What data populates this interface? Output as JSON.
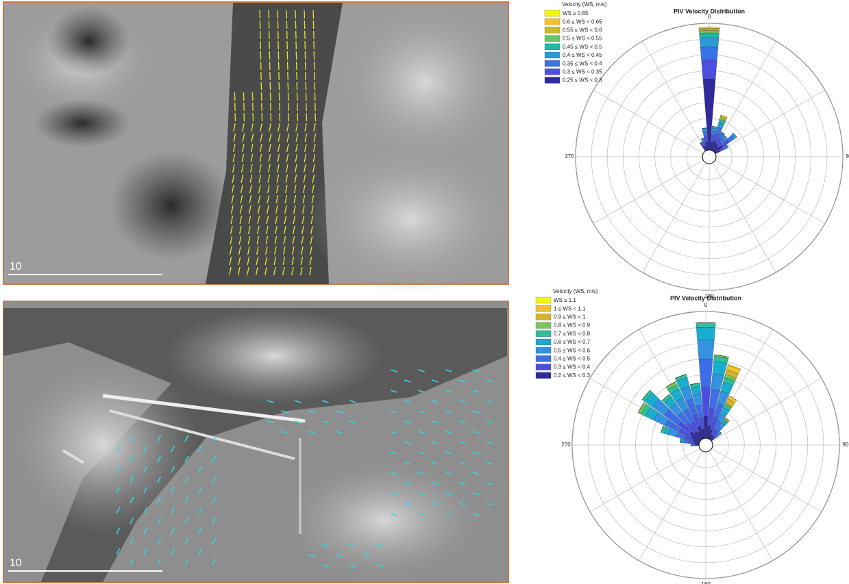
{
  "photos": [
    {
      "scale_label": "10"
    },
    {
      "scale_label": "10"
    }
  ],
  "chart_data": [
    {
      "type": "rose",
      "title": "PIV Velocity Distribution",
      "legend_title": "Velocity (WS, m/s)",
      "x": [
        330,
        340,
        350,
        0,
        10,
        20,
        30,
        40,
        50,
        60
      ],
      "rlim": [
        0,
        8
      ],
      "rticks": [
        1,
        2,
        3,
        4,
        5,
        6,
        7,
        8
      ],
      "thetaticks": [
        0,
        90,
        180,
        270
      ],
      "series": [
        {
          "name": "WS ≥ 0.65",
          "color": "#f5f50a",
          "values": [
            0,
            0,
            0,
            0.08,
            0,
            0,
            0,
            0,
            0,
            0
          ]
        },
        {
          "name": "0.6 ≤ WS < 0.65",
          "color": "#f2c12e",
          "values": [
            0,
            0,
            0,
            0.05,
            0,
            0.1,
            0,
            0,
            0,
            0
          ]
        },
        {
          "name": "0.55 ≤ WS < 0.6",
          "color": "#c9b92c",
          "values": [
            0,
            0,
            0,
            0.1,
            0,
            0.1,
            0,
            0,
            0,
            0
          ]
        },
        {
          "name": "0.5 ≤ WS < 0.55",
          "color": "#6cc46a",
          "values": [
            0,
            0,
            0,
            0.15,
            0,
            0.1,
            0,
            0,
            0,
            0
          ]
        },
        {
          "name": "0.45 ≤ WS < 0.5",
          "color": "#1fb7a6",
          "values": [
            0,
            0,
            0,
            0.3,
            0.1,
            0.2,
            0,
            0,
            0,
            0
          ]
        },
        {
          "name": "0.4 ≤ WS < 0.45",
          "color": "#2a9ad6",
          "values": [
            0,
            0.1,
            0.2,
            0.6,
            0.2,
            0.3,
            0.1,
            0.2,
            0.2,
            0.1
          ]
        },
        {
          "name": "0.35 ≤ WS < 0.4",
          "color": "#3a73e8",
          "values": [
            0.1,
            0.2,
            0.3,
            0.8,
            0.3,
            0.4,
            0.3,
            0.3,
            0.4,
            0.2
          ]
        },
        {
          "name": "0.3 ≤ WS < 0.35",
          "color": "#4c50e0",
          "values": [
            0.2,
            0.2,
            0.4,
            1.2,
            0.4,
            0.5,
            0.4,
            0.3,
            0.5,
            0.3
          ]
        },
        {
          "name": "0.25 ≤ WS < 0.3",
          "color": "#2e2a9c",
          "values": [
            0.3,
            0.3,
            0.5,
            4.5,
            0.5,
            0.6,
            0.5,
            0.4,
            0.6,
            0.3
          ]
        }
      ]
    },
    {
      "type": "rose",
      "title": "PIV Velocity Distribution",
      "legend_title": "Velocity (WS, m/s)",
      "x": [
        270,
        280,
        290,
        300,
        310,
        320,
        330,
        340,
        350,
        0,
        10,
        20,
        30,
        40,
        50
      ],
      "rlim": [
        0,
        8
      ],
      "rticks": [
        1,
        2,
        3,
        4,
        5,
        6,
        7,
        8
      ],
      "thetaticks": [
        0,
        90,
        180,
        270
      ],
      "series": [
        {
          "name": "WS ≥ 1.1",
          "color": "#f5f50a",
          "values": [
            0,
            0,
            0,
            0,
            0,
            0,
            0,
            0,
            0,
            0,
            0,
            0.05,
            0,
            0,
            0
          ]
        },
        {
          "name": "1 ≤ WS < 1.1",
          "color": "#f2c12e",
          "values": [
            0,
            0,
            0,
            0,
            0,
            0,
            0,
            0,
            0,
            0,
            0,
            0.3,
            0.2,
            0,
            0
          ]
        },
        {
          "name": "0.9 ≤ WS < 1",
          "color": "#d4b32a",
          "values": [
            0,
            0,
            0,
            0,
            0,
            0,
            0,
            0,
            0,
            0,
            0,
            0.3,
            0.3,
            0.1,
            0
          ]
        },
        {
          "name": "0.8 ≤ WS < 0.9",
          "color": "#7cc45c",
          "values": [
            0,
            0,
            0,
            0.2,
            0,
            0,
            0.2,
            0,
            0,
            0,
            0.1,
            0.2,
            0.1,
            0,
            0
          ]
        },
        {
          "name": "0.7 ≤ WS < 0.8",
          "color": "#2fbf9a",
          "values": [
            0,
            0,
            0.2,
            0.3,
            0.2,
            0.2,
            0.3,
            0.2,
            0.2,
            0.3,
            0.3,
            0.3,
            0.2,
            0.1,
            0
          ]
        },
        {
          "name": "0.6 ≤ WS < 0.7",
          "color": "#17aed0",
          "values": [
            0,
            0.1,
            0.3,
            0.6,
            0.6,
            0.5,
            0.6,
            0.6,
            0.5,
            0.8,
            0.8,
            0.6,
            0.4,
            0.2,
            0.1
          ]
        },
        {
          "name": "0.5 ≤ WS < 0.6",
          "color": "#3393e0",
          "values": [
            0.1,
            0.2,
            0.5,
            0.8,
            0.9,
            0.7,
            0.8,
            0.8,
            0.7,
            1.2,
            1.0,
            0.8,
            0.5,
            0.3,
            0.1
          ]
        },
        {
          "name": "0.4 ≤ WS < 0.5",
          "color": "#3d6ee8",
          "values": [
            0.1,
            0.3,
            0.6,
            1.0,
            1.1,
            0.8,
            0.9,
            1.0,
            0.8,
            1.8,
            1.2,
            0.9,
            0.6,
            0.3,
            0.2
          ]
        },
        {
          "name": "0.3 ≤ WS < 0.4",
          "color": "#4a4ee0",
          "values": [
            0.1,
            0.3,
            0.5,
            0.8,
            0.9,
            0.7,
            0.7,
            0.8,
            0.7,
            1.8,
            1.1,
            0.8,
            0.4,
            0.4,
            0.2
          ]
        },
        {
          "name": "0.2 ≤ WS < 0.3",
          "color": "#2e2a9c",
          "values": [
            0.2,
            0.3,
            0.4,
            0.6,
            0.8,
            0.6,
            0.5,
            0.8,
            0.6,
            1.4,
            0.8,
            0.6,
            0.3,
            0.3,
            0.2
          ]
        }
      ]
    }
  ]
}
